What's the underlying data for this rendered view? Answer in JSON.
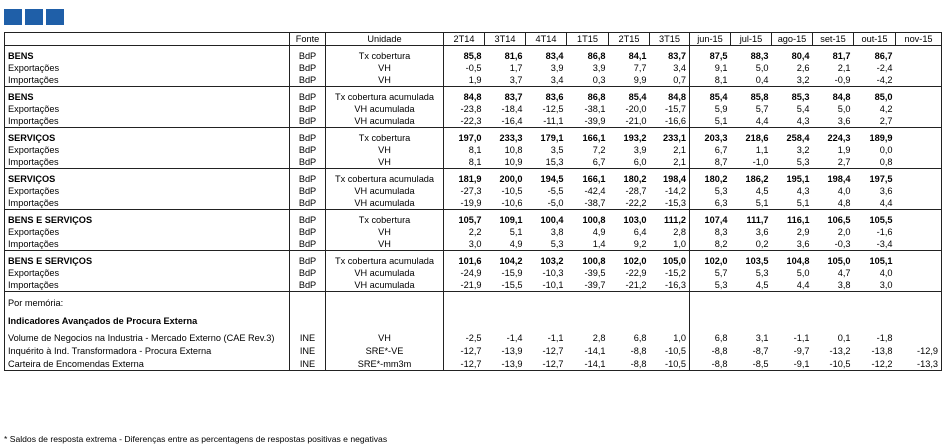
{
  "header": {
    "fonte": "Fonte",
    "unidade": "Unidade",
    "periods": [
      "2T14",
      "3T14",
      "4T14",
      "1T15",
      "2T15",
      "3T15",
      "jun-15",
      "jul-15",
      "ago-15",
      "set-15",
      "out-15",
      "nov-15"
    ]
  },
  "groups": [
    {
      "rows": [
        {
          "label": "BENS",
          "fonte": "BdP",
          "unidade": "Tx cobertura",
          "values": [
            "85,8",
            "81,6",
            "83,4",
            "86,8",
            "84,1",
            "83,7",
            "87,5",
            "88,3",
            "80,4",
            "81,7",
            "86,7",
            ""
          ]
        },
        {
          "label": "Exportações",
          "fonte": "BdP",
          "unidade": "VH",
          "values": [
            "-0,5",
            "1,7",
            "3,9",
            "3,9",
            "7,7",
            "3,4",
            "9,1",
            "5,0",
            "2,6",
            "2,1",
            "-2,4",
            ""
          ]
        },
        {
          "label": "Importações",
          "fonte": "BdP",
          "unidade": "VH",
          "values": [
            "1,9",
            "3,7",
            "3,4",
            "0,3",
            "9,9",
            "0,7",
            "8,1",
            "0,4",
            "3,2",
            "-0,9",
            "-4,2",
            ""
          ]
        }
      ]
    },
    {
      "rows": [
        {
          "label": "BENS",
          "fonte": "BdP",
          "unidade": "Tx cobertura acumulada",
          "values": [
            "84,8",
            "83,7",
            "83,6",
            "86,8",
            "85,4",
            "84,8",
            "85,4",
            "85,8",
            "85,3",
            "84,8",
            "85,0",
            ""
          ]
        },
        {
          "label": "Exportações",
          "fonte": "BdP",
          "unidade": "VH acumulada",
          "values": [
            "-23,8",
            "-18,4",
            "-12,5",
            "-38,1",
            "-20,0",
            "-15,7",
            "5,9",
            "5,7",
            "5,4",
            "5,0",
            "4,2",
            ""
          ]
        },
        {
          "label": "Importações",
          "fonte": "BdP",
          "unidade": "VH acumulada",
          "values": [
            "-22,3",
            "-16,4",
            "-11,1",
            "-39,9",
            "-21,0",
            "-16,6",
            "5,1",
            "4,4",
            "4,3",
            "3,6",
            "2,7",
            ""
          ]
        }
      ]
    },
    {
      "rows": [
        {
          "label": "SERVIÇOS",
          "fonte": "BdP",
          "unidade": "Tx cobertura",
          "values": [
            "197,0",
            "233,3",
            "179,1",
            "166,1",
            "193,2",
            "233,1",
            "203,3",
            "218,6",
            "258,4",
            "224,3",
            "189,9",
            ""
          ]
        },
        {
          "label": "Exportações",
          "fonte": "BdP",
          "unidade": "VH",
          "values": [
            "8,1",
            "10,8",
            "3,5",
            "7,2",
            "3,9",
            "2,1",
            "6,7",
            "1,1",
            "3,2",
            "1,9",
            "0,0",
            ""
          ]
        },
        {
          "label": "Importações",
          "fonte": "BdP",
          "unidade": "VH",
          "values": [
            "8,1",
            "10,9",
            "15,3",
            "6,7",
            "6,0",
            "2,1",
            "8,7",
            "-1,0",
            "5,3",
            "2,7",
            "0,8",
            ""
          ]
        }
      ]
    },
    {
      "rows": [
        {
          "label": "SERVIÇOS",
          "fonte": "BdP",
          "unidade": "Tx cobertura acumulada",
          "values": [
            "181,9",
            "200,0",
            "194,5",
            "166,1",
            "180,2",
            "198,4",
            "180,2",
            "186,2",
            "195,1",
            "198,4",
            "197,5",
            ""
          ]
        },
        {
          "label": "Exportações",
          "fonte": "BdP",
          "unidade": "VH acumulada",
          "values": [
            "-27,3",
            "-10,5",
            "-5,5",
            "-42,4",
            "-28,7",
            "-14,2",
            "5,3",
            "4,5",
            "4,3",
            "4,0",
            "3,6",
            ""
          ]
        },
        {
          "label": "Importações",
          "fonte": "BdP",
          "unidade": "VH acumulada",
          "values": [
            "-19,9",
            "-10,6",
            "-5,0",
            "-38,7",
            "-22,2",
            "-15,3",
            "6,3",
            "5,1",
            "5,1",
            "4,8",
            "4,4",
            ""
          ]
        }
      ]
    },
    {
      "rows": [
        {
          "label": "BENS E SERVIÇOS",
          "fonte": "BdP",
          "unidade": "Tx cobertura",
          "values": [
            "105,7",
            "109,1",
            "100,4",
            "100,8",
            "103,0",
            "111,2",
            "107,4",
            "111,7",
            "116,1",
            "106,5",
            "105,5",
            ""
          ]
        },
        {
          "label": "Exportações",
          "fonte": "BdP",
          "unidade": "VH",
          "values": [
            "2,2",
            "5,1",
            "3,8",
            "4,9",
            "6,4",
            "2,8",
            "8,3",
            "3,6",
            "2,9",
            "2,0",
            "-1,6",
            ""
          ]
        },
        {
          "label": "Importações",
          "fonte": "BdP",
          "unidade": "VH",
          "values": [
            "3,0",
            "4,9",
            "5,3",
            "1,4",
            "9,2",
            "1,0",
            "8,2",
            "0,2",
            "3,6",
            "-0,3",
            "-3,4",
            ""
          ]
        }
      ]
    },
    {
      "rows": [
        {
          "label": "BENS E SERVIÇOS",
          "fonte": "BdP",
          "unidade": "Tx cobertura acumulada",
          "values": [
            "101,6",
            "104,2",
            "103,2",
            "100,8",
            "102,0",
            "105,0",
            "102,0",
            "103,5",
            "104,8",
            "105,0",
            "105,1",
            ""
          ]
        },
        {
          "label": "Exportações",
          "fonte": "BdP",
          "unidade": "VH acumulada",
          "values": [
            "-24,9",
            "-15,9",
            "-10,3",
            "-39,5",
            "-22,9",
            "-15,2",
            "5,7",
            "5,3",
            "5,0",
            "4,7",
            "4,0",
            ""
          ]
        },
        {
          "label": "Importações",
          "fonte": "BdP",
          "unidade": "VH acumulada",
          "values": [
            "-21,9",
            "-15,5",
            "-10,1",
            "-39,7",
            "-21,2",
            "-16,3",
            "5,3",
            "4,5",
            "4,4",
            "3,8",
            "3,0",
            ""
          ]
        }
      ]
    }
  ],
  "memo": {
    "label": "Por memória:",
    "title": "Indicadores Avançados de Procura Externa",
    "rows": [
      {
        "label": "Volume de Negocios na Industria - Mercado Externo (CAE Rev.3)",
        "fonte": "INE",
        "unidade": "VH",
        "values": [
          "-2,5",
          "-1,4",
          "-1,1",
          "2,8",
          "6,8",
          "1,0",
          "6,8",
          "3,1",
          "-1,1",
          "0,1",
          "-1,8",
          ""
        ]
      },
      {
        "label": "Inquérito à Ind. Transformadora - Procura Externa",
        "fonte": "INE",
        "unidade": "SRE*-VE",
        "values": [
          "-12,7",
          "-13,9",
          "-12,7",
          "-14,1",
          "-8,8",
          "-10,5",
          "-8,8",
          "-8,7",
          "-9,7",
          "-13,2",
          "-13,8",
          "-12,9"
        ]
      },
      {
        "label": "Carteira de Encomendas Externa",
        "fonte": "INE",
        "unidade": "SRE*-mm3m",
        "values": [
          "-12,7",
          "-13,9",
          "-12,7",
          "-14,1",
          "-8,8",
          "-10,5",
          "-8,8",
          "-8,5",
          "-9,1",
          "-10,5",
          "-12,2",
          "-13,3"
        ]
      }
    ]
  },
  "footnote": "* Saldos de resposta extrema - Diferenças entre as percentagens de respostas positivas e negativas"
}
